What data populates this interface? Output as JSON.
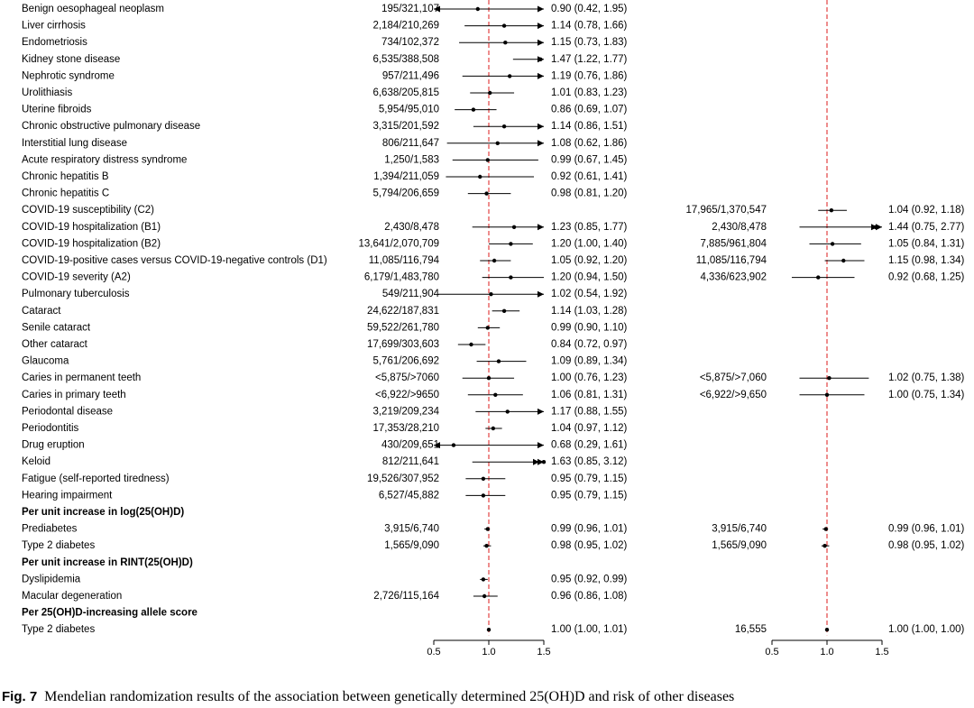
{
  "chart_data": {
    "type": "forest",
    "caption_label": "Fig. 7",
    "caption_text": "Mendelian randomization results of the association between genetically determined 25(OH)D and risk of other diseases",
    "reference_value": 1.0,
    "axes": [
      {
        "xlim": [
          0.5,
          1.5
        ],
        "ticks": [
          0.5,
          1.0,
          1.5
        ],
        "tick_labels": [
          "0.5",
          "1.0",
          "1.5"
        ]
      },
      {
        "xlim": [
          0.5,
          1.5
        ],
        "ticks": [
          0.5,
          1.0,
          1.5
        ],
        "tick_labels": [
          "0.5",
          "1.0",
          "1.5"
        ]
      }
    ],
    "rows": [
      {
        "label": "Benign oesophageal neoplasm",
        "p1": {
          "n": "195/321,107",
          "or": 0.9,
          "lo": 0.42,
          "hi": 1.95,
          "ci": "0.90 (0.42, 1.95)"
        }
      },
      {
        "label": "Liver cirrhosis",
        "p1": {
          "n": "2,184/210,269",
          "or": 1.14,
          "lo": 0.78,
          "hi": 1.66,
          "ci": "1.14 (0.78, 1.66)"
        }
      },
      {
        "label": "Endometriosis",
        "p1": {
          "n": "734/102,372",
          "or": 1.15,
          "lo": 0.73,
          "hi": 1.83,
          "ci": "1.15 (0.73, 1.83)"
        }
      },
      {
        "label": "Kidney stone disease",
        "p1": {
          "n": "6,535/388,508",
          "or": 1.47,
          "lo": 1.22,
          "hi": 1.77,
          "ci": "1.47 (1.22, 1.77)"
        }
      },
      {
        "label": "Nephrotic syndrome",
        "p1": {
          "n": "957/211,496",
          "or": 1.19,
          "lo": 0.76,
          "hi": 1.86,
          "ci": "1.19 (0.76, 1.86)"
        }
      },
      {
        "label": "Urolithiasis",
        "p1": {
          "n": "6,638/205,815",
          "or": 1.01,
          "lo": 0.83,
          "hi": 1.23,
          "ci": "1.01 (0.83, 1.23)"
        }
      },
      {
        "label": "Uterine fibroids",
        "p1": {
          "n": "5,954/95,010",
          "or": 0.86,
          "lo": 0.69,
          "hi": 1.07,
          "ci": "0.86 (0.69, 1.07)"
        }
      },
      {
        "label": "Chronic obstructive pulmonary disease",
        "p1": {
          "n": "3,315/201,592",
          "or": 1.14,
          "lo": 0.86,
          "hi": 1.51,
          "ci": "1.14 (0.86, 1.51)"
        }
      },
      {
        "label": "Interstitial lung disease",
        "p1": {
          "n": "806/211,647",
          "or": 1.08,
          "lo": 0.62,
          "hi": 1.86,
          "ci": "1.08 (0.62, 1.86)"
        }
      },
      {
        "label": "Acute respiratory distress syndrome",
        "p1": {
          "n": "1,250/1,583",
          "or": 0.99,
          "lo": 0.67,
          "hi": 1.45,
          "ci": "0.99 (0.67, 1.45)"
        }
      },
      {
        "label": "Chronic hepatitis B",
        "p1": {
          "n": "1,394/211,059",
          "or": 0.92,
          "lo": 0.61,
          "hi": 1.41,
          "ci": "0.92 (0.61, 1.41)"
        }
      },
      {
        "label": "Chronic hepatitis C",
        "p1": {
          "n": "5,794/206,659",
          "or": 0.98,
          "lo": 0.81,
          "hi": 1.2,
          "ci": "0.98 (0.81, 1.20)"
        }
      },
      {
        "label": "COVID-19 susceptibility (C2)",
        "p2": {
          "n": "17,965/1,370,547",
          "or": 1.04,
          "lo": 0.92,
          "hi": 1.18,
          "ci": "1.04 (0.92, 1.18)"
        }
      },
      {
        "label": "COVID-19 hospitalization (B1)",
        "p1": {
          "n": "2,430/8,478",
          "or": 1.23,
          "lo": 0.85,
          "hi": 1.77,
          "ci": "1.23 (0.85, 1.77)"
        },
        "p2": {
          "n": "2,430/8,478",
          "or": 1.44,
          "lo": 0.75,
          "hi": 2.77,
          "ci": "1.44 (0.75, 2.77)"
        }
      },
      {
        "label": "COVID-19 hospitalization (B2)",
        "p1": {
          "n": "13,641/2,070,709",
          "or": 1.2,
          "lo": 1.0,
          "hi": 1.4,
          "ci": "1.20 (1.00, 1.40)"
        },
        "p2": {
          "n": "7,885/961,804",
          "or": 1.05,
          "lo": 0.84,
          "hi": 1.31,
          "ci": "1.05 (0.84, 1.31)"
        }
      },
      {
        "label": "COVID-19-positive cases versus COVID-19-negative controls (D1)",
        "p1": {
          "n": "11,085/116,794",
          "or": 1.05,
          "lo": 0.92,
          "hi": 1.2,
          "ci": "1.05 (0.92, 1.20)"
        },
        "p2": {
          "n": "11,085/116,794",
          "or": 1.15,
          "lo": 0.98,
          "hi": 1.34,
          "ci": "1.15 (0.98, 1.34)"
        }
      },
      {
        "label": "COVID-19 severity (A2)",
        "p1": {
          "n": "6,179/1,483,780",
          "or": 1.2,
          "lo": 0.94,
          "hi": 1.5,
          "ci": "1.20 (0.94, 1.50)"
        },
        "p2": {
          "n": "4,336/623,902",
          "or": 0.92,
          "lo": 0.68,
          "hi": 1.25,
          "ci": "0.92 (0.68, 1.25)"
        }
      },
      {
        "label": "Pulmonary tuberculosis",
        "p1": {
          "n": "549/211,904",
          "or": 1.02,
          "lo": 0.54,
          "hi": 1.92,
          "ci": "1.02 (0.54, 1.92)"
        }
      },
      {
        "label": "Cataract",
        "p1": {
          "n": "24,622/187,831",
          "or": 1.14,
          "lo": 1.03,
          "hi": 1.28,
          "ci": "1.14 (1.03, 1.28)"
        }
      },
      {
        "label": "Senile cataract",
        "p1": {
          "n": "59,522/261,780",
          "or": 0.99,
          "lo": 0.9,
          "hi": 1.1,
          "ci": "0.99 (0.90, 1.10)"
        }
      },
      {
        "label": "Other cataract",
        "p1": {
          "n": "17,699/303,603",
          "or": 0.84,
          "lo": 0.72,
          "hi": 0.97,
          "ci": "0.84 (0.72, 0.97)"
        }
      },
      {
        "label": "Glaucoma",
        "p1": {
          "n": "5,761/206,692",
          "or": 1.09,
          "lo": 0.89,
          "hi": 1.34,
          "ci": "1.09 (0.89, 1.34)"
        }
      },
      {
        "label": "Caries in permanent teeth",
        "p1": {
          "n": "<5,875/>7060",
          "or": 1.0,
          "lo": 0.76,
          "hi": 1.23,
          "ci": "1.00 (0.76, 1.23)"
        },
        "p2": {
          "n": "<5,875/>7,060",
          "or": 1.02,
          "lo": 0.75,
          "hi": 1.38,
          "ci": "1.02 (0.75, 1.38)"
        }
      },
      {
        "label": "Caries in primary teeth",
        "p1": {
          "n": "<6,922/>9650",
          "or": 1.06,
          "lo": 0.81,
          "hi": 1.31,
          "ci": "1.06 (0.81, 1.31)"
        },
        "p2": {
          "n": "<6,922/>9,650",
          "or": 1.0,
          "lo": 0.75,
          "hi": 1.34,
          "ci": "1.00 (0.75, 1.34)"
        }
      },
      {
        "label": "Periodontal disease",
        "p1": {
          "n": "3,219/209,234",
          "or": 1.17,
          "lo": 0.88,
          "hi": 1.55,
          "ci": "1.17 (0.88, 1.55)"
        }
      },
      {
        "label": "Periodontitis",
        "p1": {
          "n": "17,353/28,210",
          "or": 1.04,
          "lo": 0.97,
          "hi": 1.12,
          "ci": "1.04 (0.97, 1.12)"
        }
      },
      {
        "label": "Drug eruption",
        "p1": {
          "n": "430/209,651",
          "or": 0.68,
          "lo": 0.29,
          "hi": 1.61,
          "ci": "0.68 (0.29, 1.61)"
        }
      },
      {
        "label": "Keloid",
        "p1": {
          "n": "812/211,641",
          "or": 1.63,
          "lo": 0.85,
          "hi": 3.12,
          "ci": "1.63 (0.85, 3.12)"
        }
      },
      {
        "label": "Fatigue (self-reported tiredness)",
        "p1": {
          "n": "19,526/307,952",
          "or": 0.95,
          "lo": 0.79,
          "hi": 1.15,
          "ci": "0.95 (0.79, 1.15)"
        }
      },
      {
        "label": "Hearing impairment",
        "p1": {
          "n": "6,527/45,882",
          "or": 0.95,
          "lo": 0.79,
          "hi": 1.15,
          "ci": "0.95 (0.79, 1.15)"
        }
      },
      {
        "label": "Per unit increase in log(25(OH)D)",
        "header": true
      },
      {
        "label": "Prediabetes",
        "p1": {
          "n": "3,915/6,740",
          "or": 0.99,
          "lo": 0.96,
          "hi": 1.01,
          "ci": "0.99 (0.96, 1.01)"
        },
        "p2": {
          "n": "3,915/6,740",
          "or": 0.99,
          "lo": 0.96,
          "hi": 1.01,
          "ci": "0.99 (0.96, 1.01)"
        }
      },
      {
        "label": "Type 2 diabetes",
        "p1": {
          "n": "1,565/9,090",
          "or": 0.98,
          "lo": 0.95,
          "hi": 1.02,
          "ci": "0.98 (0.95, 1.02)"
        },
        "p2": {
          "n": "1,565/9,090",
          "or": 0.98,
          "lo": 0.95,
          "hi": 1.02,
          "ci": "0.98 (0.95, 1.02)"
        }
      },
      {
        "label": "Per unit increase in RINT(25(OH)D)",
        "header": true
      },
      {
        "label": "Dyslipidemia",
        "p1": {
          "n": "",
          "or": 0.95,
          "lo": 0.92,
          "hi": 0.99,
          "ci": "0.95 (0.92, 0.99)"
        }
      },
      {
        "label": "Macular degeneration",
        "p1": {
          "n": "2,726/115,164",
          "or": 0.96,
          "lo": 0.86,
          "hi": 1.08,
          "ci": "0.96 (0.86, 1.08)"
        }
      },
      {
        "label": "Per 25(OH)D-increasing allele score",
        "header": true
      },
      {
        "label": "Type 2 diabetes",
        "p1": {
          "n": "",
          "or": 1.0,
          "lo": 1.0,
          "hi": 1.01,
          "ci": "1.00 (1.00, 1.01)"
        },
        "p2": {
          "n": "16,555",
          "or": 1.0,
          "lo": 1.0,
          "hi": 1.0,
          "ci": "1.00 (1.00, 1.00)"
        }
      }
    ]
  },
  "colors": {
    "reference_line": "#e03030",
    "marks": "#000000",
    "text": "#000000"
  }
}
